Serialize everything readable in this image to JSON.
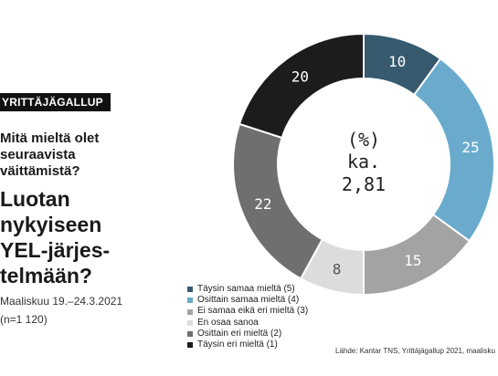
{
  "badge": "YRITTÄJÄGALLUP",
  "question_lines": [
    "Mitä mieltä olet",
    "seuraavista",
    "väittämistä?"
  ],
  "statement_lines": [
    "Luotan",
    "nykyiseen",
    "YEL-järjes-",
    "telmään?"
  ],
  "survey_date": "Maaliskuu 19.–24.3.2021",
  "sample_size": "(n=1 120)",
  "source": "Lähde: Kantar TNS, Yrittäjägallup 2021, maalisku",
  "chart_data": {
    "type": "pie",
    "style": "donut",
    "center_lines": [
      "(%)",
      "ka.",
      "2,81"
    ],
    "categories": [
      "Täysin samaa mieltä (5)",
      "Osittain samaa mieltä (4)",
      "Ei samaa eikä eri mieltä (3)",
      "En osaa sanoa",
      "Osittain eri mieltä (2)",
      "Täysin eri mieltä (1)"
    ],
    "values": [
      10,
      25,
      15,
      8,
      22,
      20
    ],
    "colors": [
      "#375a6e",
      "#6aabcd",
      "#a3a3a3",
      "#dcdcdc",
      "#6f6f6f",
      "#1c1c1c"
    ],
    "label_colors": [
      "#ffffff",
      "#ffffff",
      "#ffffff",
      "#555555",
      "#ffffff",
      "#ffffff"
    ],
    "legend_placement": "bottom-left"
  }
}
